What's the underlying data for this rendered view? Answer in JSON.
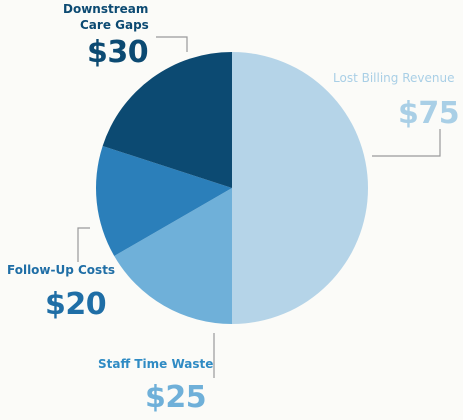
{
  "chart_data": {
    "type": "pie",
    "title": "",
    "slices": [
      {
        "name": "Lost Billing Revenue",
        "value": 75,
        "value_label": "$75",
        "color": "#b5d4e8"
      },
      {
        "name": "Staff Time Waste",
        "value": 25,
        "value_label": "$25",
        "color": "#6fb0d9"
      },
      {
        "name": "Follow-Up Costs",
        "value": 20,
        "value_label": "$20",
        "color": "#2b7fba"
      },
      {
        "name": "Downstream Care Gaps",
        "value": 30,
        "value_label": "$30",
        "color": "#0c4a72"
      }
    ],
    "label_colors": {
      "Lost Billing Revenue": "#a9cfe6",
      "Staff Time Waste": "#2f8bc4",
      "Follow-Up Costs": "#1f6ea6",
      "Downstream Care Gaps": "#0c4a72"
    },
    "leader_line_color": "#9a9a9a",
    "background": "#fbfbf8"
  },
  "labels": {
    "downstream_line1": "Downstream",
    "downstream_line2": "Care Gaps",
    "downstream_value": "$30",
    "lost_billing_name": "Lost Billing Revenue",
    "lost_billing_value": "$75",
    "follow_up_name": "Follow-Up Costs",
    "follow_up_value": "$20",
    "staff_time_name": "Staff Time Waste",
    "staff_time_value": "$25"
  }
}
